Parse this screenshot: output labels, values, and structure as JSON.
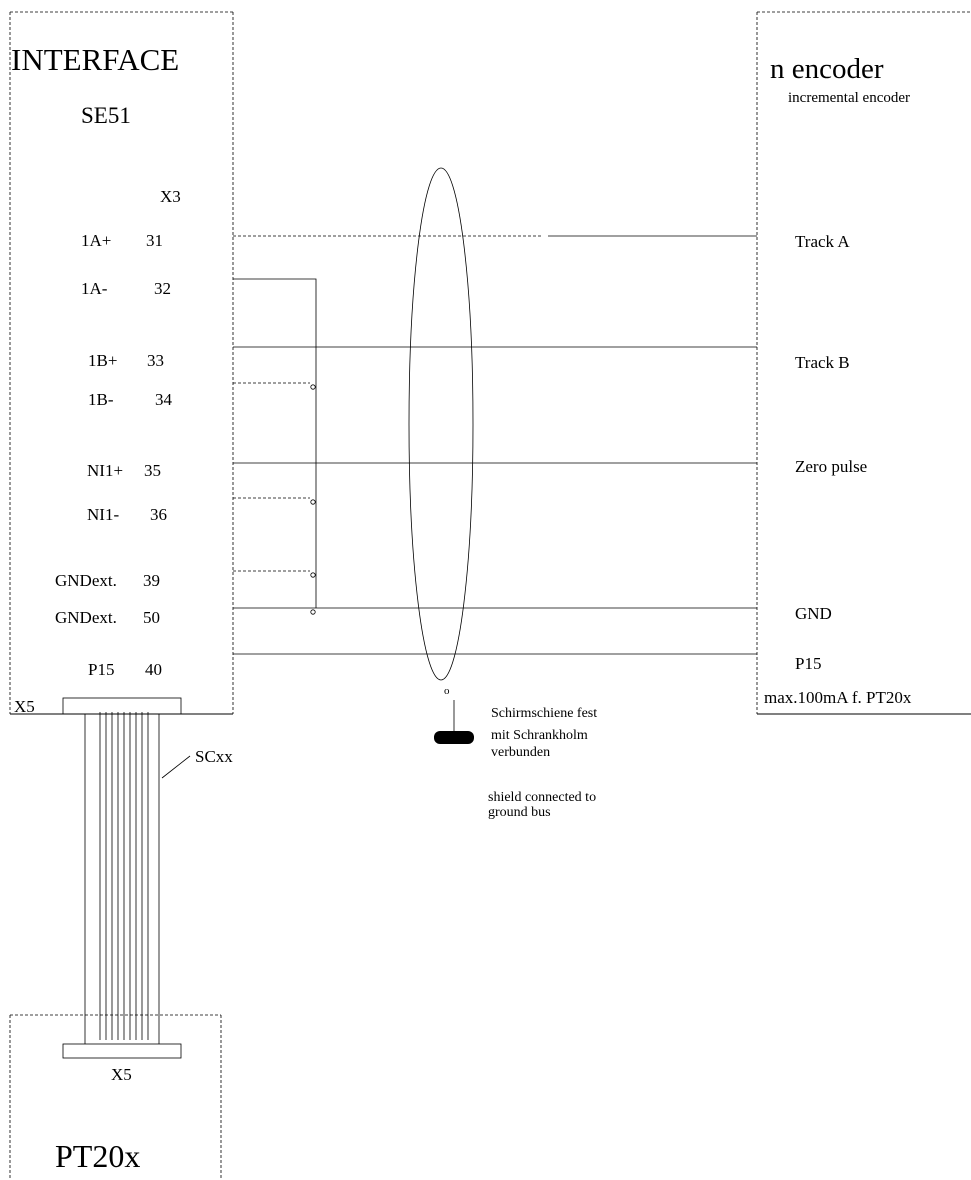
{
  "interface": {
    "title": "INTERFACE",
    "model": "SE51",
    "connector": "X3",
    "x5_label": "X5"
  },
  "terminals": [
    {
      "signal": "1A+",
      "pin": "31"
    },
    {
      "signal": "1A-",
      "pin": "32"
    },
    {
      "signal": "1B+",
      "pin": "33"
    },
    {
      "signal": "1B-",
      "pin": "34"
    },
    {
      "signal": "NI1+",
      "pin": "35"
    },
    {
      "signal": "NI1-",
      "pin": "36"
    },
    {
      "signal": "GNDext.",
      "pin": "39"
    },
    {
      "signal": "GNDext.",
      "pin": "50"
    },
    {
      "signal": "P15",
      "pin": "40"
    }
  ],
  "encoder": {
    "title": "n encoder",
    "subtitle": "incremental encoder",
    "signals": [
      "Track  A",
      "Track  B",
      "Zero pulse",
      "GND",
      "P15"
    ],
    "power_note": "max.100mA f. PT20x"
  },
  "cable": {
    "label": "SCxx"
  },
  "pt20x": {
    "connector": "X5",
    "title": "PT20x"
  },
  "shield": {
    "hub_symbol": "o",
    "note_de_1": "Schirmschiene fest",
    "note_de_2": "mit Schrankholm",
    "note_de_3": "verbunden",
    "note_en_1": "shield connected to",
    "note_en_2": "ground bus"
  }
}
